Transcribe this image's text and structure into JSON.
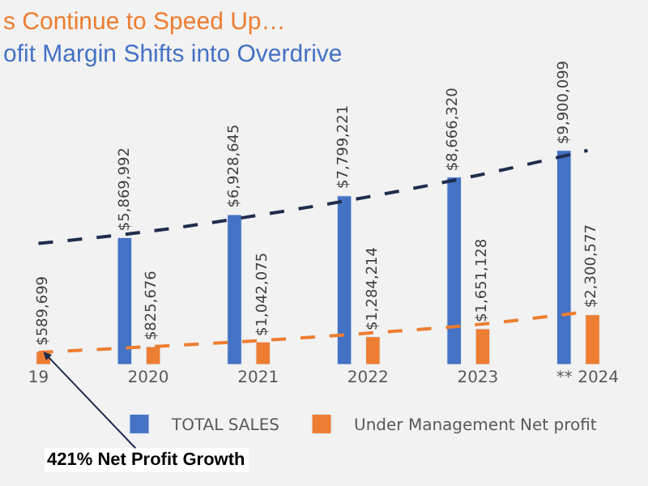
{
  "chart_data": {
    "type": "bar",
    "title": "s Continue to Speed Up…",
    "subtitle": "ofit Margin Shifts into Overdrive",
    "categories": [
      "19",
      "2020",
      "2021",
      "2022",
      "2023",
      "** 2024"
    ],
    "series": [
      {
        "name": "TOTAL SALES",
        "color": "#4472c4",
        "values": [
          null,
          5869992,
          6928645,
          7799221,
          8666320,
          9900099
        ],
        "value_labels": [
          null,
          "$5,869,992",
          "$6,928,645",
          "$7,799,221",
          "$8,666,320",
          "$9,900,099"
        ]
      },
      {
        "name": "Under Management Net profit",
        "color": "#ed7d31",
        "values": [
          589699,
          825676,
          1042075,
          1284214,
          1651128,
          2300577
        ],
        "value_labels": [
          "$589,699",
          "$825,676",
          "$1,042,075",
          "$1,284,214",
          "$1,651,128",
          "$2,300,577"
        ]
      },
      {
        "type": "line",
        "color": "#1f2d4d",
        "line_style": "dashed",
        "values": [
          5600000,
          6150000,
          6900000,
          7750000,
          8750000,
          9900000
        ]
      },
      {
        "type": "line",
        "color": "#ed7d31",
        "line_style": "dashed",
        "values": [
          560000,
          820000,
          1100000,
          1450000,
          1850000,
          2450000
        ]
      }
    ],
    "annotations": [
      {
        "text": "421% Net Profit Growth",
        "x": "19",
        "y": 589699
      }
    ],
    "legend": "bottom"
  }
}
